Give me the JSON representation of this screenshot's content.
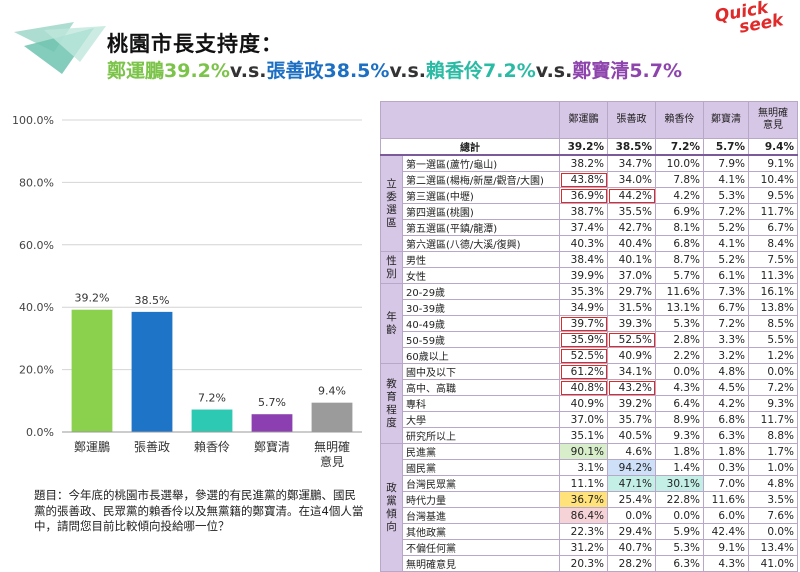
{
  "header": {
    "title": "桃園市長支持度：",
    "subtitle_parts": [
      {
        "text": "鄭運鵬39.2%",
        "color": "green"
      },
      {
        "text": "v.s.",
        "color": "dark"
      },
      {
        "text": "張善政38.5%",
        "color": "blue"
      },
      {
        "text": "v.s.",
        "color": "dark"
      },
      {
        "text": "賴香伶7.2%",
        "color": "teal"
      },
      {
        "text": "v.s.",
        "color": "dark"
      },
      {
        "text": "鄭寶清5.7%",
        "color": "purple"
      }
    ],
    "brand_line1": "Quick",
    "brand_line2": "seek"
  },
  "chart_data": {
    "type": "bar",
    "categories": [
      "鄭運鵬",
      "張善政",
      "賴香伶",
      "鄭寶清",
      "無明確\n意見"
    ],
    "values": [
      39.2,
      38.5,
      7.2,
      5.7,
      9.4
    ],
    "value_labels": [
      "39.2%",
      "38.5%",
      "7.2%",
      "5.7%",
      "9.4%"
    ],
    "colors": [
      "#8cd14e",
      "#1e74c6",
      "#2ec9b3",
      "#8c3fb0",
      "#9b9b9b"
    ],
    "ylim": [
      0,
      100
    ],
    "yticks": [
      "0.0%",
      "20.0%",
      "40.0%",
      "60.0%",
      "80.0%",
      "100.0%"
    ],
    "ytick_values": [
      0,
      20,
      40,
      60,
      80,
      100
    ],
    "grid": true
  },
  "note": "題目：今年底的桃園市長選舉，參選的有民進黨的鄭運鵬、國民黨的張善政、民眾黨的賴香伶以及無黨籍的鄭寶清。在這4個人當中，請問您目前比較傾向投給哪一位？",
  "table": {
    "columns": [
      "鄭運鵬",
      "張善政",
      "賴香伶",
      "鄭寶清",
      "無明確\n意見"
    ],
    "total": {
      "label": "總計",
      "values": [
        "39.2%",
        "38.5%",
        "7.2%",
        "5.7%",
        "9.4%"
      ]
    },
    "groups": [
      {
        "name": "立委選區",
        "rows": [
          {
            "label": "第一選區(蘆竹/龜山)",
            "values": [
              "38.2%",
              "34.7%",
              "10.0%",
              "7.9%",
              "9.1%"
            ]
          },
          {
            "label": "第二選區(楊梅/新屋/觀音/大園)",
            "values": [
              "43.8%",
              "34.0%",
              "7.8%",
              "4.1%",
              "10.4%"
            ]
          },
          {
            "label": "第三選區(中壢)",
            "values": [
              "36.9%",
              "44.2%",
              "4.2%",
              "5.3%",
              "9.5%"
            ]
          },
          {
            "label": "第四選區(桃園)",
            "values": [
              "38.7%",
              "35.5%",
              "6.9%",
              "7.2%",
              "11.7%"
            ]
          },
          {
            "label": "第五選區(平鎮/龍潭)",
            "values": [
              "37.4%",
              "42.7%",
              "8.1%",
              "5.2%",
              "6.7%"
            ]
          },
          {
            "label": "第六選區(八德/大溪/復興)",
            "values": [
              "40.3%",
              "40.4%",
              "6.8%",
              "4.1%",
              "8.4%"
            ]
          }
        ]
      },
      {
        "name": "性別",
        "rows": [
          {
            "label": "男性",
            "values": [
              "38.4%",
              "40.1%",
              "8.7%",
              "5.2%",
              "7.5%"
            ]
          },
          {
            "label": "女性",
            "values": [
              "39.9%",
              "37.0%",
              "5.7%",
              "6.1%",
              "11.3%"
            ]
          }
        ]
      },
      {
        "name": "年齡",
        "rows": [
          {
            "label": "20-29歲",
            "values": [
              "35.3%",
              "29.7%",
              "11.6%",
              "7.3%",
              "16.1%"
            ]
          },
          {
            "label": "30-39歲",
            "values": [
              "34.9%",
              "31.5%",
              "13.1%",
              "6.7%",
              "13.8%"
            ]
          },
          {
            "label": "40-49歲",
            "values": [
              "39.7%",
              "39.3%",
              "5.3%",
              "7.2%",
              "8.5%"
            ]
          },
          {
            "label": "50-59歲",
            "values": [
              "35.9%",
              "52.5%",
              "2.8%",
              "3.3%",
              "5.5%"
            ]
          },
          {
            "label": "60歲以上",
            "values": [
              "52.5%",
              "40.9%",
              "2.2%",
              "3.2%",
              "1.2%"
            ]
          }
        ]
      },
      {
        "name": "教育程度",
        "rows": [
          {
            "label": "國中及以下",
            "values": [
              "61.2%",
              "34.1%",
              "0.0%",
              "4.8%",
              "0.0%"
            ]
          },
          {
            "label": "高中、高職",
            "values": [
              "40.8%",
              "43.2%",
              "4.3%",
              "4.5%",
              "7.2%"
            ]
          },
          {
            "label": "專科",
            "values": [
              "40.9%",
              "39.2%",
              "6.4%",
              "4.2%",
              "9.3%"
            ]
          },
          {
            "label": "大學",
            "values": [
              "37.0%",
              "35.7%",
              "8.9%",
              "6.8%",
              "11.7%"
            ]
          },
          {
            "label": "研究所以上",
            "values": [
              "35.1%",
              "40.5%",
              "9.3%",
              "6.3%",
              "8.8%"
            ]
          }
        ]
      },
      {
        "name": "政黨傾向",
        "rows": [
          {
            "label": "民進黨",
            "values": [
              "90.1%",
              "4.6%",
              "1.8%",
              "1.8%",
              "1.7%"
            ]
          },
          {
            "label": "國民黨",
            "values": [
              "3.1%",
              "94.2%",
              "1.4%",
              "0.3%",
              "1.0%"
            ]
          },
          {
            "label": "台灣民眾黨",
            "values": [
              "11.1%",
              "47.1%",
              "30.1%",
              "7.0%",
              "4.8%"
            ]
          },
          {
            "label": "時代力量",
            "values": [
              "36.7%",
              "25.4%",
              "22.8%",
              "11.6%",
              "3.5%"
            ]
          },
          {
            "label": "台灣基進",
            "values": [
              "86.4%",
              "0.0%",
              "0.0%",
              "6.0%",
              "7.6%"
            ]
          },
          {
            "label": "其他政黨",
            "values": [
              "22.3%",
              "29.4%",
              "5.9%",
              "42.4%",
              "0.0%"
            ]
          },
          {
            "label": "不偏任何黨",
            "values": [
              "31.2%",
              "40.7%",
              "5.3%",
              "9.1%",
              "13.4%"
            ]
          },
          {
            "label": "無明確意見",
            "values": [
              "20.3%",
              "28.2%",
              "6.3%",
              "4.3%",
              "41.0%"
            ]
          }
        ]
      }
    ],
    "highlights_outline": [
      "1-1-0",
      "1-2-1",
      "1-2-0",
      "3-2-0",
      "3-3-0",
      "3-3-1",
      "3-4-0",
      "4-0-0",
      "4-1-0",
      "4-1-1"
    ],
    "highlights_fill": {
      "5-0-0": "g",
      "5-1-1": "b",
      "5-2-1": "t",
      "5-2-2": "t",
      "5-3-0": "y",
      "5-4-0": "p"
    }
  }
}
